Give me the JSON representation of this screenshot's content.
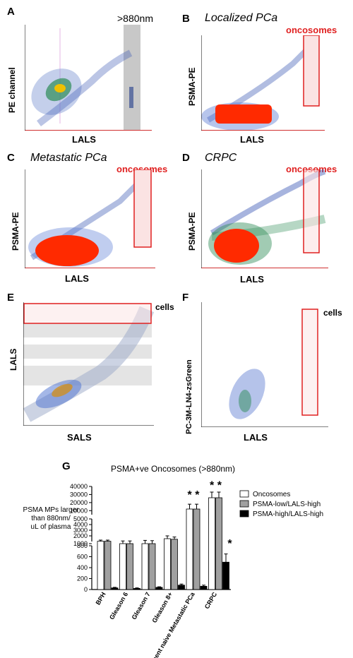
{
  "panels": {
    "A": {
      "letter": "A",
      "ylabel": "PE channel",
      "xlabel": "LALS",
      "annotation": ">880nm"
    },
    "B": {
      "letter": "B",
      "title": "Localized PCa",
      "gate_label": "oncosomes",
      "ylabel": "PSMA-PE",
      "xlabel": "LALS"
    },
    "C": {
      "letter": "C",
      "title": "Metastatic PCa",
      "gate_label": "oncosomes",
      "ylabel": "PSMA-PE",
      "xlabel": "LALS"
    },
    "D": {
      "letter": "D",
      "title": "CRPC",
      "gate_label": "oncosomes",
      "ylabel": "PSMA-PE",
      "xlabel": "LALS"
    },
    "E": {
      "letter": "E",
      "gate_label": "cells",
      "ylabel": "LALS",
      "xlabel": "SALS"
    },
    "F": {
      "letter": "F",
      "gate_label": "cells",
      "ylabel": "PC-3M-LN4-zsGreen",
      "xlabel": "LALS"
    },
    "G": {
      "letter": "G"
    }
  },
  "colors": {
    "gate": "#e02020",
    "gate_fill": "#fbe3e3",
    "black": "#000000",
    "gray": "#a0a0a0",
    "white": "#ffffff"
  },
  "chart_data": {
    "type": "bar",
    "title": "PSMA+ve Oncosomes (>880nm)",
    "ylabel": "PSMA MPs larger than 880nm/ uL of plasma",
    "ylabel_lines": [
      "PSMA MPs larger",
      "than 880nm/",
      "uL of plasma"
    ],
    "yaxis_segments": [
      {
        "range": [
          0,
          800
        ],
        "ticks": [
          0,
          200,
          400,
          600,
          800
        ]
      },
      {
        "range": [
          1000,
          5000
        ],
        "ticks": [
          1000,
          2000,
          3000,
          4000,
          5000
        ]
      },
      {
        "range": [
          5000,
          40000
        ],
        "ticks": [
          10000,
          20000,
          30000,
          40000
        ]
      }
    ],
    "tick_labels": [
      "0",
      "200",
      "400",
      "600",
      "800",
      "1000",
      "2000",
      "3000",
      "4000",
      "5000",
      "10000",
      "20000",
      "30000",
      "40000"
    ],
    "categories": [
      "BPH",
      "Gleason 6",
      "Gleason 7",
      "Gleason 8+",
      "Treatment naive Metastatic PCa",
      "CRPC"
    ],
    "series": [
      {
        "name": "Oncosomes",
        "color": "#ffffff",
        "values": [
          1050,
          1000,
          1000,
          1500,
          12000,
          26000
        ],
        "errors": [
          200,
          100,
          200,
          500,
          6000,
          7000
        ]
      },
      {
        "name": "PSMA-low/LALS-high",
        "color": "#a0a0a0",
        "values": [
          1050,
          1000,
          1000,
          1400,
          12000,
          26000
        ],
        "errors": [
          200,
          100,
          150,
          400,
          6000,
          7000
        ]
      },
      {
        "name": "PSMA-high/LALS-high",
        "color": "#000000",
        "values": [
          30,
          20,
          40,
          80,
          60,
          500
        ],
        "errors": [
          10,
          10,
          10,
          20,
          20,
          150
        ]
      }
    ],
    "significance": [
      {
        "category": "Treatment naive Metastatic PCa",
        "marks": "* *"
      },
      {
        "category": "CRPC",
        "marks": "* *"
      },
      {
        "category": "CRPC",
        "marks": "*"
      }
    ]
  }
}
